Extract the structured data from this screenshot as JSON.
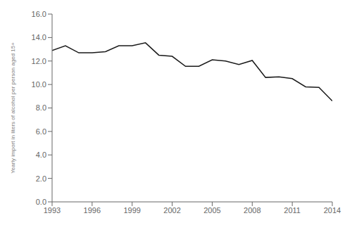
{
  "chart_data": {
    "type": "line",
    "x": [
      1993,
      1994,
      1995,
      1996,
      1997,
      1998,
      1999,
      2000,
      2001,
      2002,
      2003,
      2004,
      2005,
      2006,
      2007,
      2008,
      2009,
      2010,
      2011,
      2012,
      2013,
      2014
    ],
    "values": [
      12.9,
      13.3,
      12.7,
      12.7,
      12.8,
      13.3,
      13.3,
      13.55,
      12.5,
      12.4,
      11.55,
      11.55,
      12.1,
      12.0,
      11.7,
      12.05,
      10.6,
      10.65,
      10.5,
      9.8,
      9.75,
      8.6
    ],
    "color": "#1a1a1a",
    "xlim": [
      1993,
      2014
    ],
    "ylim": [
      0.0,
      16.0
    ],
    "xticks": [
      1993,
      1996,
      1999,
      2002,
      2005,
      2008,
      2011,
      2014
    ],
    "yticks": [
      {
        "value": 0.0,
        "label": "0.0"
      },
      {
        "value": 2.0,
        "label": "2.0"
      },
      {
        "value": 4.0,
        "label": "4.0"
      },
      {
        "value": 6.0,
        "label": "6.0"
      },
      {
        "value": 8.0,
        "label": "8.0"
      },
      {
        "value": 10.0,
        "label": "10.0"
      },
      {
        "value": 12.0,
        "label": "12.0"
      },
      {
        "value": 14.0,
        "label": "14.0"
      },
      {
        "value": 16.0,
        "label": "16.0"
      }
    ],
    "ylabel": "Yearly import in liters of alcohol per person aged 15+",
    "grid": false
  }
}
